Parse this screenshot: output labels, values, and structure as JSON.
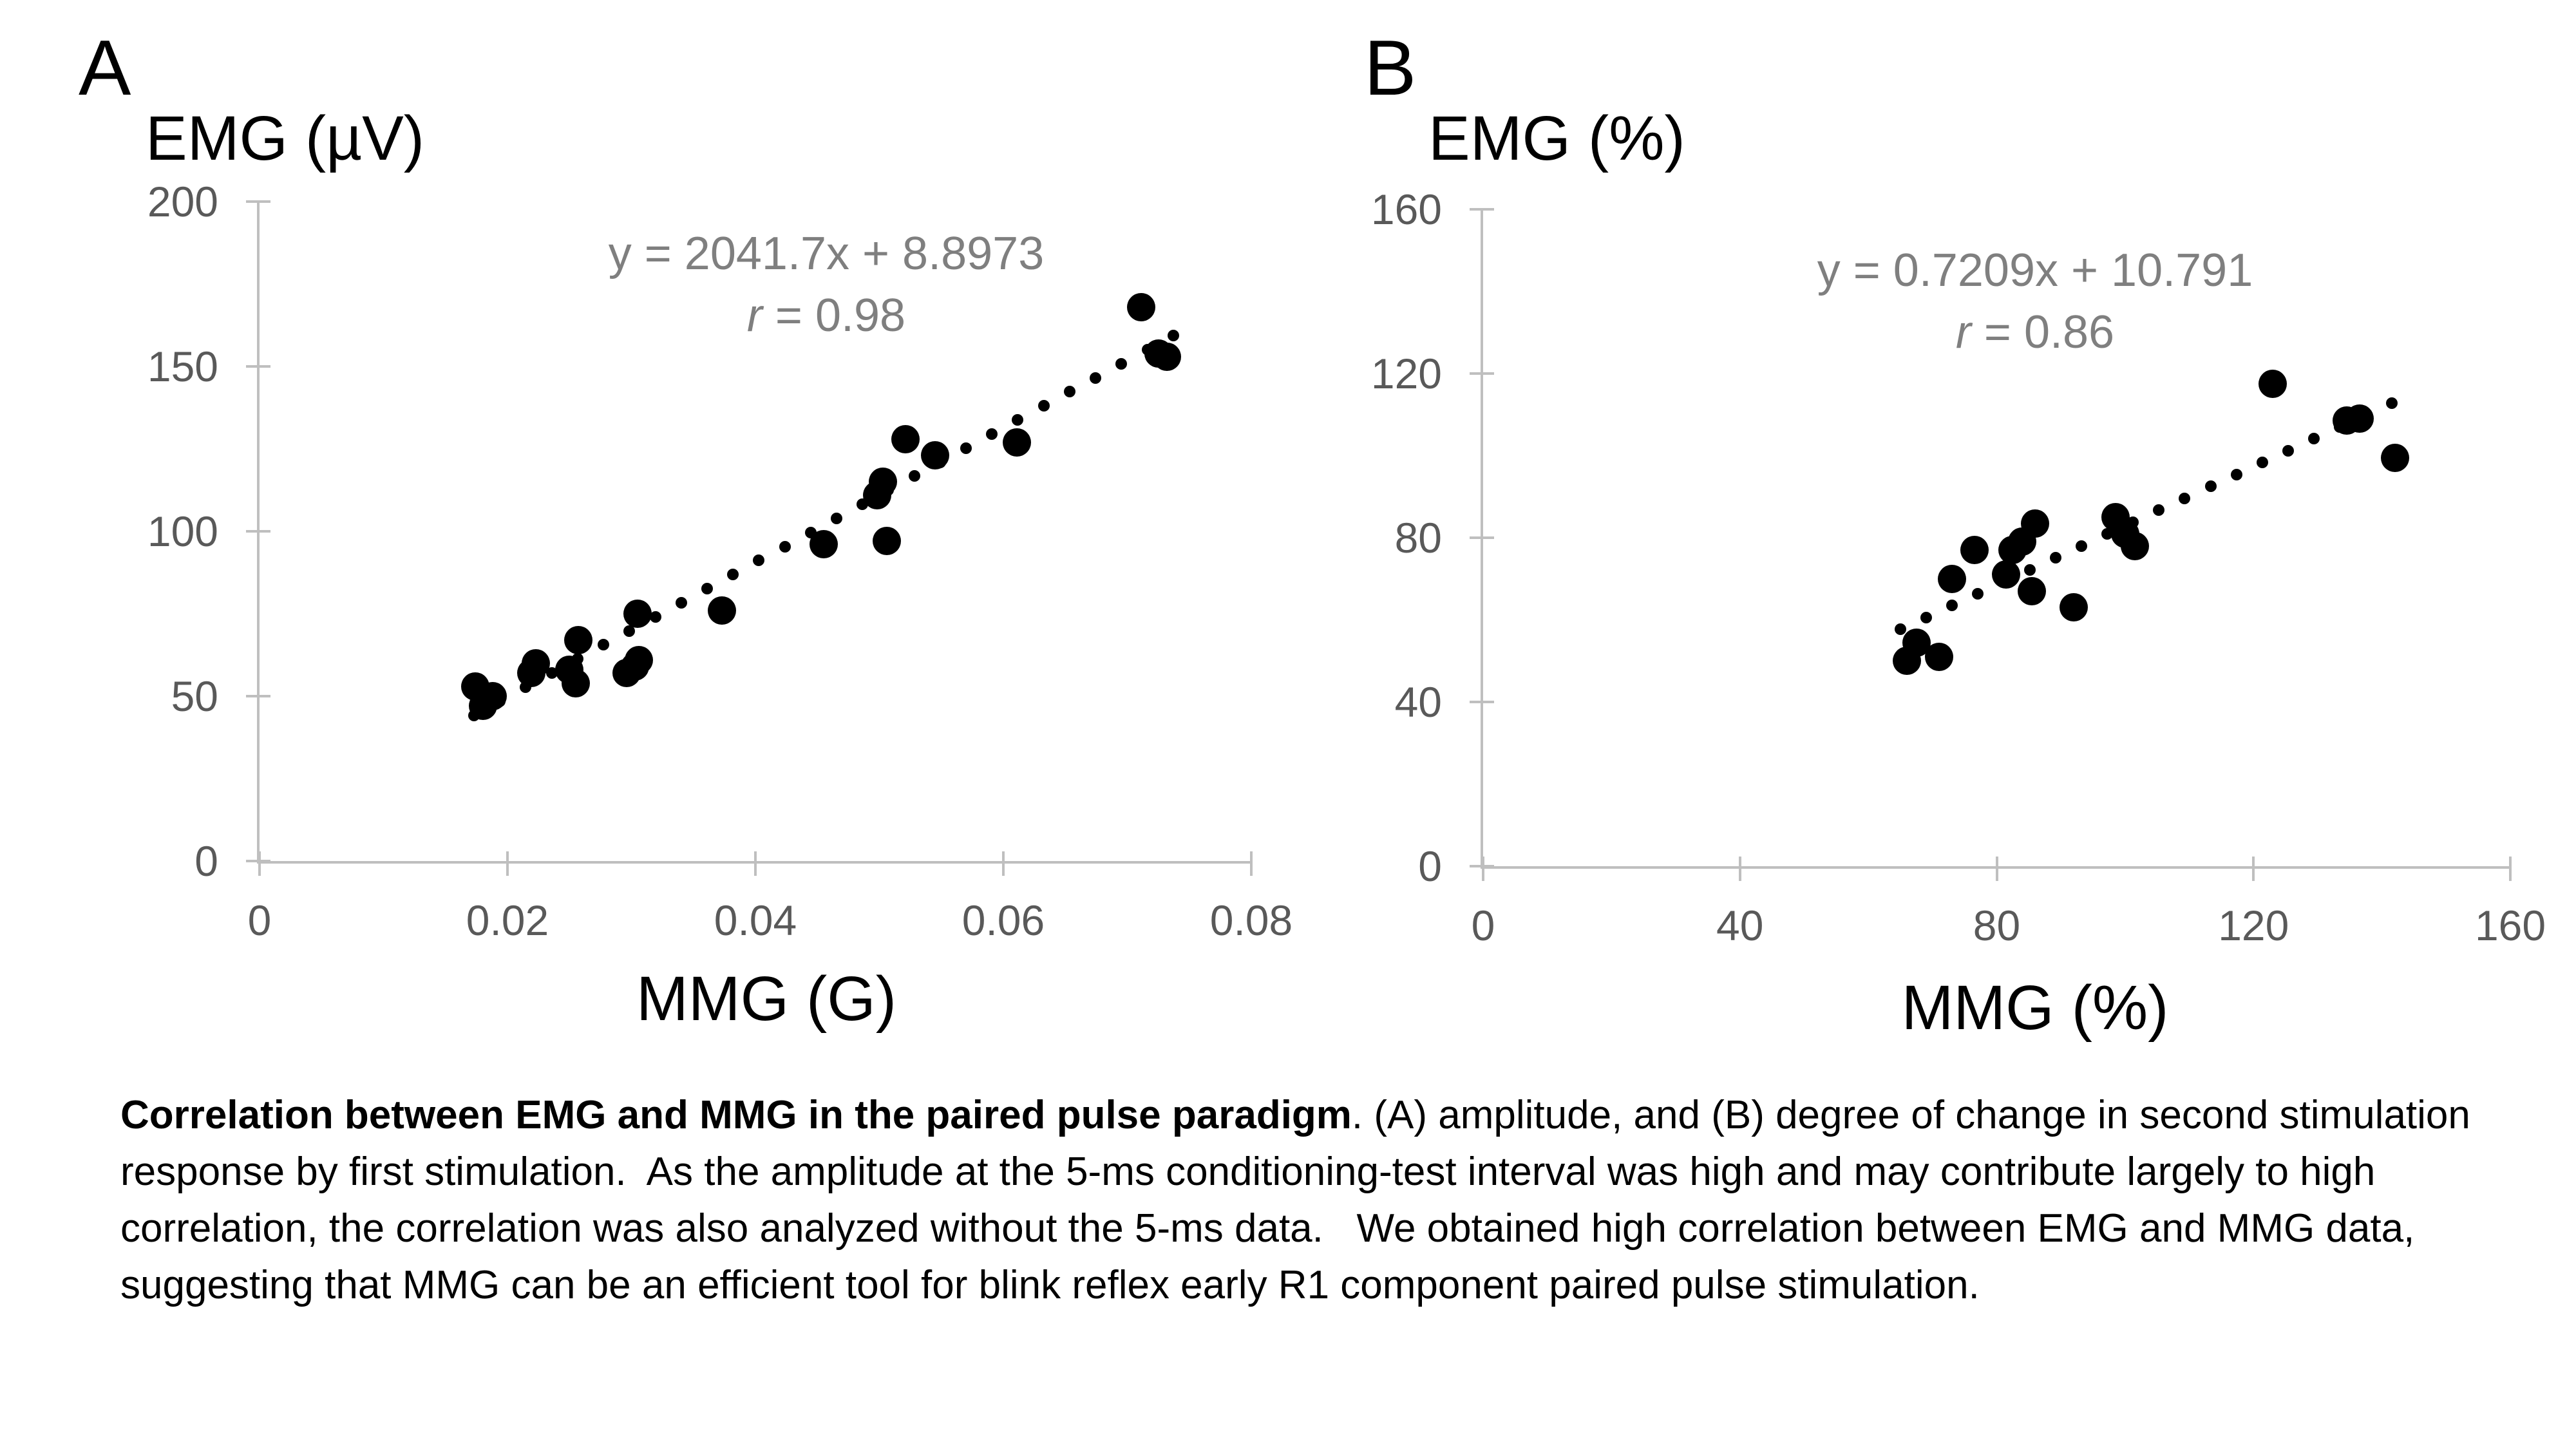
{
  "figure": {
    "panels": [
      {
        "letter": "A",
        "y_axis_title": "EMG (µV)",
        "x_axis_title": "MMG (G)",
        "equation": "y = 2041.7x + 8.8973",
        "r_italic": "r",
        "r_rest": " = 0.98"
      },
      {
        "letter": "B",
        "y_axis_title": "EMG (%)",
        "x_axis_title": "MMG (%)",
        "equation": "y = 0.7209x + 10.791",
        "r_italic": "r",
        "r_rest": " = 0.86"
      }
    ],
    "caption": {
      "bold": "Correlation between EMG and MMG in the paired pulse paradigm",
      "rest": ". (A) amplitude, and (B) degree of change in second stimulation response by first stimulation.  As the amplitude at the 5-ms conditioning-test interval was high and may contribute largely to high correlation, the correlation was also analyzed without the 5-ms data.   We obtained high correlation between EMG and MMG data, suggesting that MMG can be an efficient tool for blink reflex early R1 component paired pulse stimulation."
    },
    "colors": {
      "points": "#000000",
      "axis": "#bfbfbf",
      "tick_labels": "#595959",
      "equation_text": "#7f7f7f"
    }
  },
  "chart_data": [
    {
      "type": "scatter",
      "panel": "A",
      "title": "",
      "xlabel": "MMG (G)",
      "ylabel": "EMG (µV)",
      "xlim": [
        0,
        0.08
      ],
      "ylim": [
        0,
        200
      ],
      "x_tick_values": [
        0,
        0.02,
        0.04,
        0.06,
        0.08
      ],
      "x_tick_labels": [
        "0",
        "0.02",
        "0.04",
        "0.06",
        "0.08"
      ],
      "y_tick_values": [
        0,
        50,
        100,
        150,
        200
      ],
      "y_tick_labels": [
        "0",
        "50",
        "100",
        "150",
        "200"
      ],
      "grid": false,
      "legend": false,
      "annotation": {
        "equation": "y = 2041.7x + 8.8973",
        "r": "r = 0.98"
      },
      "points": [
        [
          0.0174,
          53
        ],
        [
          0.018,
          47
        ],
        [
          0.0188,
          50
        ],
        [
          0.0219,
          57
        ],
        [
          0.0223,
          60
        ],
        [
          0.025,
          58
        ],
        [
          0.0255,
          54
        ],
        [
          0.0257,
          67
        ],
        [
          0.0296,
          57
        ],
        [
          0.0303,
          59
        ],
        [
          0.0306,
          61
        ],
        [
          0.0305,
          75
        ],
        [
          0.0373,
          76
        ],
        [
          0.0455,
          96
        ],
        [
          0.0498,
          111
        ],
        [
          0.0503,
          115
        ],
        [
          0.0506,
          97
        ],
        [
          0.0521,
          128
        ],
        [
          0.0545,
          123
        ],
        [
          0.0611,
          127
        ],
        [
          0.0711,
          168
        ],
        [
          0.0725,
          154
        ],
        [
          0.0732,
          153
        ]
      ],
      "trendline": {
        "style": "dotted",
        "slope": 2041.7,
        "intercept": 8.8973,
        "x_start": 0.0173,
        "x_end": 0.0737,
        "dots": 28
      }
    },
    {
      "type": "scatter",
      "panel": "B",
      "title": "",
      "xlabel": "MMG (%)",
      "ylabel": "EMG (%)",
      "xlim": [
        0,
        160
      ],
      "ylim": [
        0,
        160
      ],
      "x_tick_values": [
        0,
        40,
        80,
        120,
        160
      ],
      "x_tick_labels": [
        "0",
        "40",
        "80",
        "120",
        "160"
      ],
      "y_tick_values": [
        0,
        40,
        80,
        120,
        160
      ],
      "y_tick_labels": [
        "0",
        "40",
        "80",
        "120",
        "160"
      ],
      "grid": false,
      "legend": false,
      "annotation": {
        "equation": "y = 0.7209x + 10.791",
        "r": "r = 0.86"
      },
      "points": [
        [
          66,
          50
        ],
        [
          67.5,
          54.5
        ],
        [
          71,
          51
        ],
        [
          73,
          70
        ],
        [
          76.5,
          77
        ],
        [
          81.5,
          71
        ],
        [
          82.5,
          77
        ],
        [
          84,
          79
        ],
        [
          86,
          83.5
        ],
        [
          85.5,
          67
        ],
        [
          92,
          63
        ],
        [
          98.5,
          85
        ],
        [
          100,
          81
        ],
        [
          101.5,
          78
        ],
        [
          123,
          117.5
        ],
        [
          134.5,
          108.5
        ],
        [
          136.5,
          109
        ],
        [
          142,
          99.5
        ]
      ],
      "trendline": {
        "style": "dotted",
        "slope": 0.7209,
        "intercept": 10.791,
        "x_start": 65,
        "x_end": 141.5,
        "dots": 20
      }
    }
  ]
}
